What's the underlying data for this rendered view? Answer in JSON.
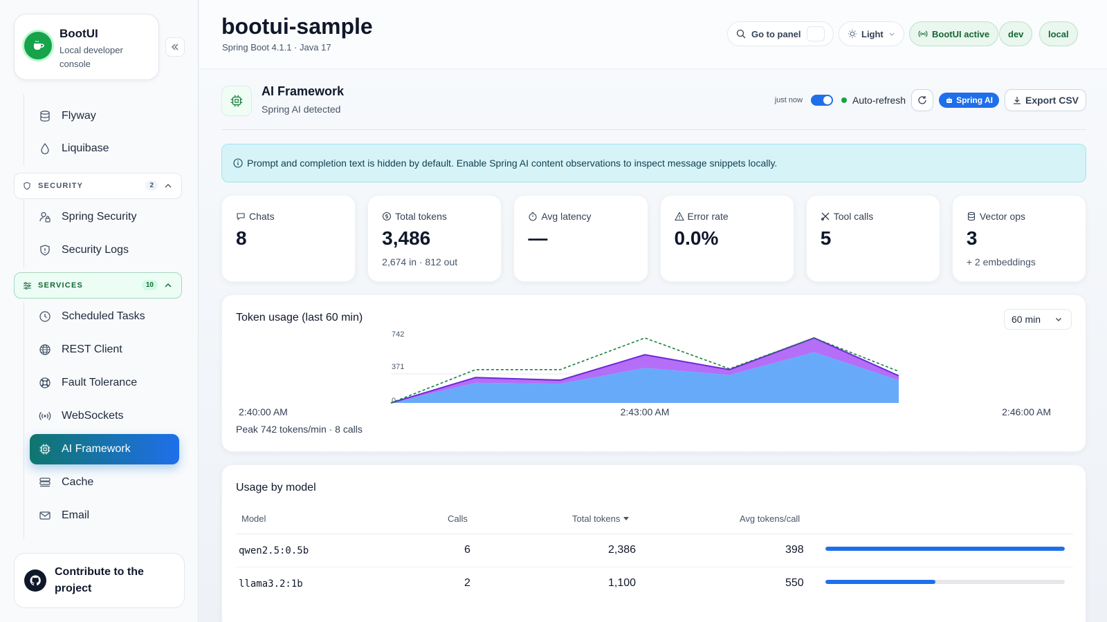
{
  "sidebar": {
    "brand_name": "BootUI",
    "brand_sub": "Local developer console",
    "items_top": [
      {
        "label": "Flyway",
        "icon": "database-icon"
      },
      {
        "label": "Liquibase",
        "icon": "droplet-icon"
      }
    ],
    "security": {
      "label": "SECURITY",
      "count": "2"
    },
    "items_security": [
      {
        "label": "Spring Security",
        "icon": "user-lock-icon"
      },
      {
        "label": "Security Logs",
        "icon": "shield-icon"
      }
    ],
    "services": {
      "label": "SERVICES",
      "count": "10"
    },
    "items_services": [
      {
        "label": "Scheduled Tasks",
        "icon": "clock-icon"
      },
      {
        "label": "REST Client",
        "icon": "globe-icon"
      },
      {
        "label": "Fault Tolerance",
        "icon": "lifebuoy-icon"
      },
      {
        "label": "WebSockets",
        "icon": "broadcast-icon"
      },
      {
        "label": "AI Framework",
        "icon": "chip-icon",
        "active": true
      },
      {
        "label": "Cache",
        "icon": "layers-icon"
      },
      {
        "label": "Email",
        "icon": "mail-icon"
      }
    ],
    "contribute": "Contribute to the project"
  },
  "header": {
    "title": "bootui-sample",
    "subtitle": "Spring Boot 4.1.1 · Java 17",
    "search_label": "Go to panel",
    "theme_label": "Light",
    "status_label": "BootUI active",
    "env_dev": "dev",
    "env_local": "local"
  },
  "section": {
    "title": "AI Framework",
    "subtitle": "Spring AI detected",
    "updated": "just now",
    "auto_refresh": "Auto-refresh",
    "badge": "Spring AI",
    "export": "Export CSV"
  },
  "alert": "Prompt and completion text is hidden by default. Enable Spring AI content observations to inspect message snippets locally.",
  "stats": [
    {
      "label": "Chats",
      "value": "8",
      "note": "",
      "icon": "chat-icon"
    },
    {
      "label": "Total tokens",
      "value": "3,486",
      "note": "2,674 in · 812 out",
      "icon": "coin-icon"
    },
    {
      "label": "Avg latency",
      "value": "—",
      "note": "",
      "icon": "stopwatch-icon"
    },
    {
      "label": "Error rate",
      "value": "0.0%",
      "note": "",
      "icon": "warning-icon"
    },
    {
      "label": "Tool calls",
      "value": "5",
      "note": "",
      "icon": "tools-icon"
    },
    {
      "label": "Vector ops",
      "value": "3",
      "note": "+ 2 embeddings",
      "icon": "cylinder-icon"
    }
  ],
  "chart": {
    "title": "Token usage (last 60 min)",
    "range_select": "60 min",
    "peak": "Peak 742 tokens/min · 8 calls",
    "x_ticks": [
      "2:40:00 AM",
      "2:43:00 AM",
      "2:46:00 AM"
    ]
  },
  "chart_data": {
    "type": "area",
    "title": "Token usage (last 60 min)",
    "ylim": [
      0,
      742
    ],
    "y_ticks": [
      "0",
      "371",
      "742"
    ],
    "x_ticks": [
      "2:40:00 AM",
      "2:43:00 AM",
      "2:46:00 AM"
    ],
    "x": [
      0,
      1,
      2,
      3,
      4,
      5,
      6
    ],
    "series": [
      {
        "name": "",
        "kind": "area",
        "color": "#60a5fa",
        "values": [
          0,
          230,
          220,
          400,
          320,
          580,
          260
        ]
      },
      {
        "name": "",
        "kind": "area-stack",
        "color": "#a855f7",
        "values": [
          0,
          60,
          40,
          150,
          60,
          162,
          50
        ]
      },
      {
        "name": "",
        "kind": "dashed-line",
        "color": "#15803d",
        "values": [
          0,
          380,
          380,
          742,
          390,
          742,
          360
        ]
      }
    ]
  },
  "table": {
    "title": "Usage by model",
    "headers": [
      "Model",
      "Calls",
      "Total tokens",
      "Avg tokens/call"
    ],
    "rows": [
      {
        "model": "qwen2.5:0.5b",
        "calls": "6",
        "tokens": "2,386",
        "avg": "398",
        "share": 1.0
      },
      {
        "model": "llama3.2:1b",
        "calls": "2",
        "tokens": "1,100",
        "avg": "550",
        "share": 0.46
      }
    ]
  }
}
